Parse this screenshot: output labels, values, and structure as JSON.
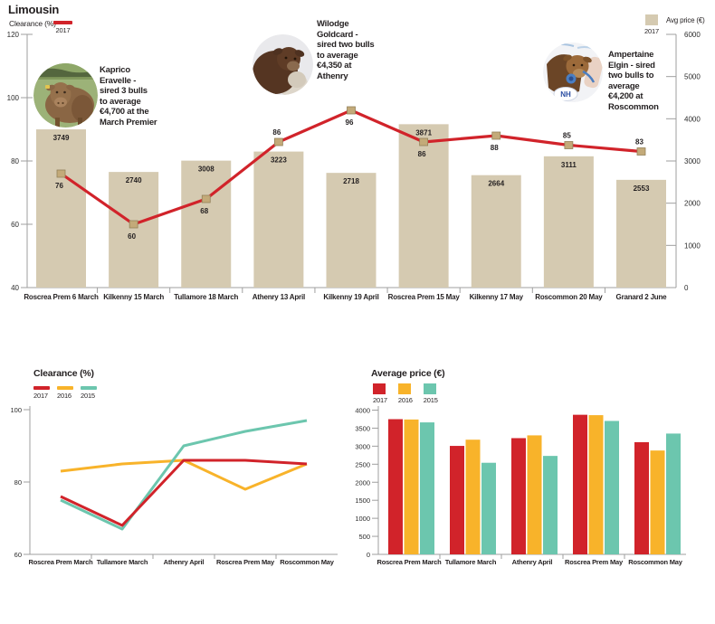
{
  "title": "Limousin",
  "colors": {
    "red": "#d1232a",
    "yellow": "#f8b32a",
    "teal": "#6cc6ae",
    "tan_bar": "#d5cab1",
    "marker_fill": "#c3aa79",
    "marker_stroke": "#93815a",
    "axis": "#9f9f9f",
    "text": "#231f20"
  },
  "main_chart": {
    "left_axis_label": "Clearance (%)",
    "left_legend_year": "2017",
    "right_axis_label": "Avg price (€)",
    "right_legend_year": "2017",
    "annotations": [
      {
        "name": "Kaprico Eravelle",
        "lines": [
          "Kaprico",
          "Eravelle -",
          "sired 3 bulls",
          "to average",
          "€4,700 at the",
          "March Premier"
        ],
        "badge": ""
      },
      {
        "name": "Wilodge Goldcard",
        "lines": [
          "Wilodge",
          "Goldcard -",
          "sired two bulls",
          "to average",
          "€4,350 at",
          "Athenry"
        ],
        "badge": ""
      },
      {
        "name": "Ampertaine Elgin",
        "lines": [
          "Ampertaine",
          "Elgin - sired",
          "two bulls to",
          "average",
          "€4,200 at",
          "Roscommon"
        ],
        "badge": "NH"
      }
    ]
  },
  "clearance_chart": {
    "title": "Clearance (%)",
    "legend": [
      "2017",
      "2016",
      "2015"
    ]
  },
  "price_chart": {
    "title": "Average price (€)",
    "legend": [
      "2017",
      "2016",
      "2015"
    ]
  },
  "chart_data": [
    {
      "type": "bar+line",
      "title": "Limousin 2017 bull sales",
      "categories": [
        "Roscrea Prem 6 March",
        "Kilkenny 15 March",
        "Tullamore 18 March",
        "Athenry 13 April",
        "Kilkenny 19 April",
        "Roscrea Prem 15 May",
        "Kilkenny 17 May",
        "Roscommon 20 May",
        "Granard 2 June"
      ],
      "series": [
        {
          "name": "Avg price (€) 2017",
          "type": "bar",
          "values": [
            3749,
            2740,
            3008,
            3223,
            2718,
            3871,
            2664,
            3111,
            2553
          ]
        },
        {
          "name": "Clearance (%) 2017",
          "type": "line",
          "values": [
            76,
            60,
            68,
            86,
            96,
            86,
            88,
            85,
            83
          ]
        }
      ],
      "clearance_label_above": [
        false,
        false,
        false,
        true,
        false,
        false,
        false,
        true,
        true
      ],
      "left_axis": {
        "label": "Clearance (%)",
        "range": [
          40,
          120
        ],
        "ticks": [
          120,
          100,
          80,
          60,
          40
        ]
      },
      "right_axis": {
        "label": "Avg price (€)",
        "range": [
          0,
          6000
        ],
        "ticks": [
          6000,
          5000,
          4000,
          3000,
          2000,
          1000,
          0
        ]
      },
      "legend_position": "top",
      "grid": false
    },
    {
      "type": "line",
      "title": "Clearance (%)",
      "categories": [
        "Roscrea Prem March",
        "Tullamore March",
        "Athenry April",
        "Roscrea Prem May",
        "Roscommon May"
      ],
      "series": [
        {
          "name": "2017",
          "color": "red",
          "values": [
            76,
            68,
            86,
            86,
            85
          ]
        },
        {
          "name": "2016",
          "color": "yellow",
          "values": [
            83,
            85,
            86,
            78,
            85
          ]
        },
        {
          "name": "2015",
          "color": "teal",
          "values": [
            75,
            67,
            90,
            94,
            97
          ]
        }
      ],
      "ylim": [
        60,
        100
      ],
      "yticks": [
        100,
        80,
        60
      ],
      "grid": false
    },
    {
      "type": "bar",
      "title": "Average price (€)",
      "categories": [
        "Roscrea Prem March",
        "Tullamore March",
        "Athenry April",
        "Roscrea Prem May",
        "Roscommon May"
      ],
      "series": [
        {
          "name": "2017",
          "color": "red",
          "values": [
            3749,
            3008,
            3223,
            3871,
            3111
          ]
        },
        {
          "name": "2016",
          "color": "yellow",
          "values": [
            3740,
            3180,
            3300,
            3860,
            2880
          ]
        },
        {
          "name": "2015",
          "color": "teal",
          "values": [
            3660,
            2540,
            2730,
            3700,
            3350
          ]
        }
      ],
      "ylim": [
        0,
        4000
      ],
      "yticks": [
        4000,
        3500,
        3000,
        2500,
        2000,
        1500,
        1000,
        500,
        0
      ],
      "grid": false
    }
  ]
}
